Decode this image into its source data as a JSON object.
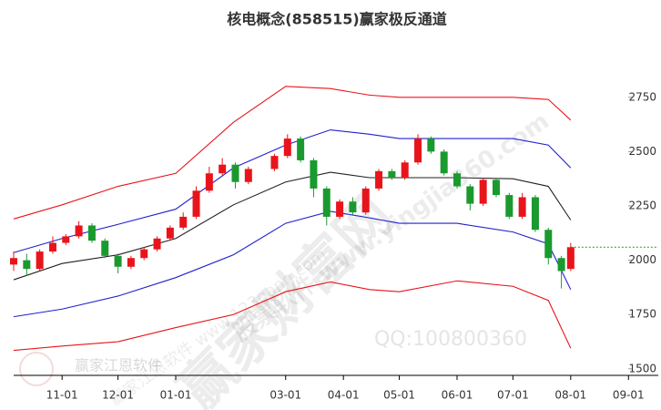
{
  "chart_data": {
    "type": "candlestick",
    "title": "核电概念(858515)赢家极反通道",
    "x": [
      "10-06",
      "10-13",
      "10-20",
      "10-27",
      "11-03",
      "11-10",
      "11-17",
      "11-24",
      "12-01",
      "12-08",
      "12-15",
      "12-22",
      "12-29",
      "01-05",
      "01-12",
      "01-19",
      "01-26",
      "02-02",
      "02-09",
      "02-23",
      "03-02",
      "03-09",
      "03-16",
      "03-23",
      "03-30",
      "04-06",
      "04-13",
      "04-20",
      "04-27",
      "05-04",
      "05-11",
      "05-18",
      "05-25",
      "06-01",
      "06-08",
      "06-15",
      "06-22",
      "06-29",
      "07-06",
      "07-13",
      "07-20",
      "07-27",
      "08-01"
    ],
    "open": [
      1980,
      2000,
      1960,
      2040,
      2080,
      2110,
      2160,
      2090,
      2020,
      1970,
      2010,
      2050,
      2100,
      2150,
      2200,
      2320,
      2400,
      2440,
      2360,
      2420,
      2480,
      2560,
      2460,
      2330,
      2200,
      2270,
      2220,
      2330,
      2410,
      2380,
      2450,
      2560,
      2500,
      2400,
      2340,
      2260,
      2370,
      2300,
      2200,
      2290,
      2140,
      2010,
      1960
    ],
    "high": [
      2040,
      2030,
      2050,
      2110,
      2120,
      2180,
      2170,
      2100,
      2030,
      2020,
      2060,
      2110,
      2160,
      2220,
      2340,
      2430,
      2470,
      2450,
      2430,
      2490,
      2580,
      2570,
      2470,
      2340,
      2280,
      2290,
      2340,
      2420,
      2420,
      2460,
      2580,
      2570,
      2510,
      2410,
      2350,
      2380,
      2380,
      2310,
      2310,
      2300,
      2150,
      2020,
      2080
    ],
    "low": [
      1950,
      1930,
      1950,
      2030,
      2070,
      2100,
      2080,
      2010,
      1940,
      1960,
      2000,
      2040,
      2090,
      2140,
      2190,
      2310,
      2390,
      2330,
      2350,
      2410,
      2470,
      2450,
      2290,
      2160,
      2190,
      2210,
      2210,
      2320,
      2370,
      2370,
      2440,
      2490,
      2390,
      2330,
      2230,
      2250,
      2290,
      2190,
      2190,
      2130,
      1980,
      1870,
      1950
    ],
    "close": [
      2010,
      1960,
      2040,
      2080,
      2110,
      2160,
      2090,
      2020,
      1970,
      2010,
      2050,
      2100,
      2150,
      2200,
      2320,
      2400,
      2440,
      2360,
      2420,
      2480,
      2560,
      2460,
      2330,
      2200,
      2270,
      2220,
      2330,
      2410,
      2380,
      2450,
      2560,
      2500,
      2400,
      2340,
      2260,
      2370,
      2300,
      2200,
      2290,
      2140,
      2010,
      1950,
      2060
    ],
    "up_color": "#e8141b",
    "down_color": "#1a9a2e",
    "last_color": "#1a9a2e",
    "bands": {
      "x": [
        "10-06",
        "11-01",
        "12-01",
        "01-01",
        "02-01",
        "03-01",
        "03-25",
        "04-15",
        "05-01",
        "06-01",
        "07-01",
        "07-20",
        "08-01"
      ],
      "series": [
        {
          "color": "#e8141b",
          "values": [
            2190,
            2255,
            2340,
            2400,
            2635,
            2800,
            2790,
            2760,
            2750,
            2750,
            2750,
            2740,
            2645
          ]
        },
        {
          "color": "#2020d0",
          "values": [
            2035,
            2100,
            2165,
            2235,
            2425,
            2530,
            2600,
            2580,
            2560,
            2560,
            2560,
            2530,
            2425
          ]
        },
        {
          "color": "#222222",
          "values": [
            1910,
            1985,
            2025,
            2100,
            2255,
            2360,
            2405,
            2380,
            2380,
            2380,
            2375,
            2340,
            2185
          ]
        },
        {
          "color": "#2020d0",
          "values": [
            1740,
            1775,
            1835,
            1920,
            2025,
            2170,
            2225,
            2195,
            2170,
            2170,
            2130,
            2075,
            1865
          ]
        },
        {
          "color": "#e8141b",
          "values": [
            1585,
            1605,
            1625,
            1690,
            1750,
            1855,
            1900,
            1865,
            1855,
            1905,
            1880,
            1815,
            1595
          ]
        }
      ]
    },
    "xlim": [
      "10-06",
      "09-17"
    ],
    "xticks": [
      "11-01",
      "12-01",
      "01-01",
      "03-01",
      "04-01",
      "05-01",
      "06-01",
      "07-01",
      "08-01",
      "09-01"
    ],
    "ylim": [
      1470,
      3030
    ],
    "yticks": [
      1500,
      1750,
      2000,
      2250,
      2500,
      2750
    ]
  },
  "watermarks": [
    "赢家财富网",
    "股票软件 www.yingjia360.com",
    "QQ:100800360",
    "赢家江恩软件",
    "赢家江恩软件 www.123gann.com"
  ]
}
